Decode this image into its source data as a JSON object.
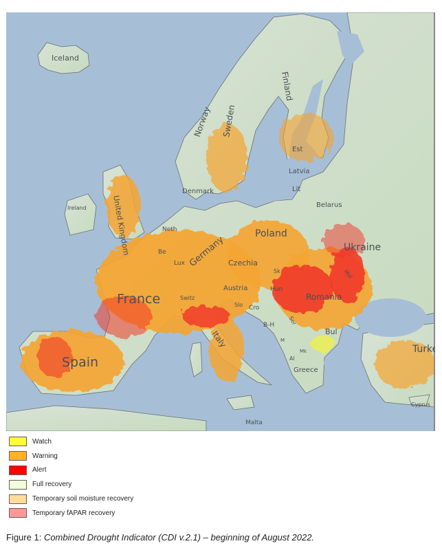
{
  "figure": {
    "caption_prefix": "Figure 1:",
    "caption_text": "Combined Drought Indicator (CDI v.2.1) – beginning of August 2022."
  },
  "map": {
    "colors": {
      "sea": "#a6bfd6",
      "land": "#c9dcc8",
      "border": "#6a6f75"
    },
    "labels": {
      "iceland": "Iceland",
      "norway": "Norway",
      "sweden": "Sweden",
      "finland": "Finland",
      "estonia": "Est",
      "latvia": "Latvia",
      "lithuania": "Lit",
      "belarus": "Belarus",
      "denmark": "Denmark",
      "ireland": "Ireland",
      "uk": "United Kingdom",
      "netherlands": "Neth",
      "belgium": "Be",
      "luxembourg": "Lux",
      "germany": "Germany",
      "poland": "Poland",
      "czechia": "Czechia",
      "slovakia": "Sk",
      "ukraine": "Ukraine",
      "moldova": "Mol",
      "austria": "Austria",
      "hungary": "Hun",
      "switzerland": "Switz",
      "france": "France",
      "slovenia": "Slo",
      "croatia": "Cro",
      "romania": "Romania",
      "bosnia": "B-H",
      "serbia": "Ser",
      "montenegro": "M",
      "bulgaria": "Bul",
      "spain": "Spain",
      "italy": "Italy",
      "albania": "Al",
      "macedonia": "Mk",
      "greece": "Greece",
      "turkey": "Turkey",
      "cyprus": "Cyprus",
      "malta": "Malta"
    }
  },
  "legend": {
    "items": [
      {
        "label": "Watch",
        "color": "#ffff33"
      },
      {
        "label": "Warning",
        "color": "#ffb224"
      },
      {
        "label": "Alert",
        "color": "#ff0000"
      },
      {
        "label": "Full recovery",
        "color": "#eeffdd"
      },
      {
        "label": "Temporary soil moisture recovery",
        "color": "#ffdd99"
      },
      {
        "label": "Temporary fAPAR recovery",
        "color": "#ff9999"
      }
    ]
  }
}
